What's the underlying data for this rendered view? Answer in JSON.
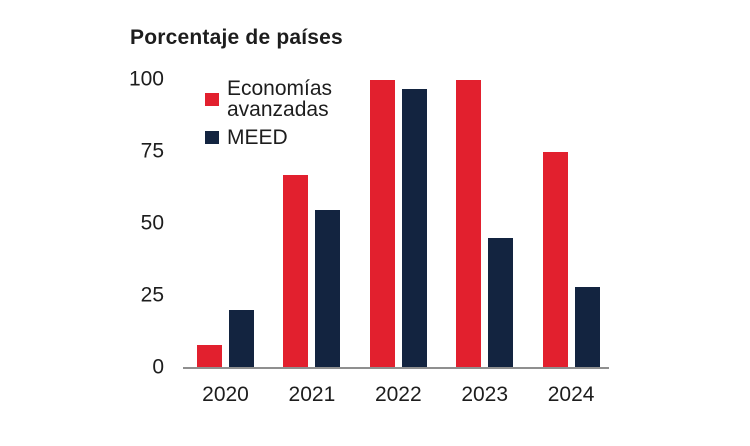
{
  "chart": {
    "title": "Porcentaje de países"
  },
  "chart_data": {
    "type": "bar",
    "title": "Porcentaje de países",
    "categories": [
      "2020",
      "2021",
      "2022",
      "2023",
      "2024"
    ],
    "series": [
      {
        "name": "Economías avanzadas",
        "color": "#e2202e",
        "values": [
          8,
          67,
          100,
          100,
          75
        ]
      },
      {
        "name": "MEED",
        "color": "#132440",
        "values": [
          20,
          55,
          97,
          45,
          28
        ]
      }
    ],
    "xlabel": "",
    "ylabel": "Porcentaje de países",
    "ylim": [
      0,
      100
    ],
    "yticks": [
      0,
      25,
      50,
      75,
      100
    ],
    "grid": false,
    "legend_position": "top-left-inside",
    "axis_line_color": "#8f8f8f",
    "text_color": "#1d1d1d",
    "background_color": "#ffffff"
  }
}
